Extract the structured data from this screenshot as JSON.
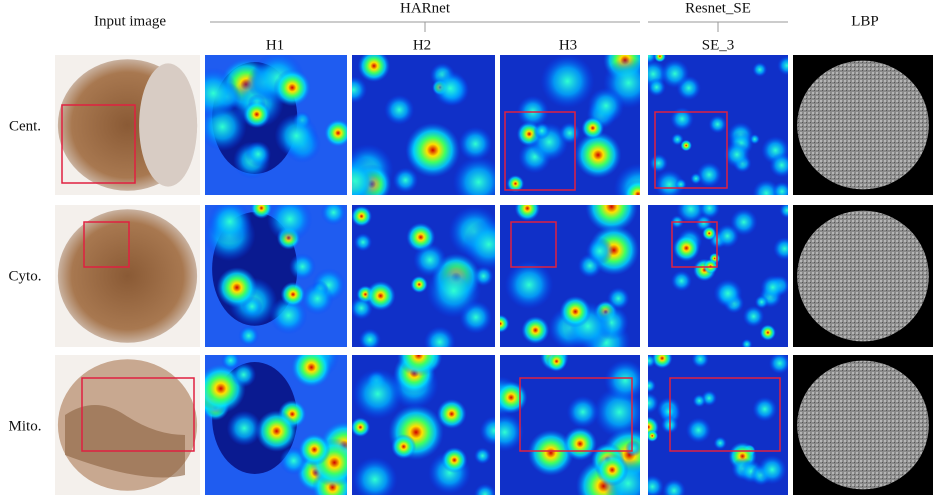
{
  "columns": {
    "input": "Input image",
    "harnet": {
      "title": "HARnet",
      "subs": [
        "H1",
        "H2",
        "H3"
      ]
    },
    "resnet": {
      "title": "Resnet_SE",
      "subs": [
        "SE_3"
      ]
    },
    "lbp": "LBP"
  },
  "rows": [
    "Cent.",
    "Cyto.",
    "Mito."
  ]
}
